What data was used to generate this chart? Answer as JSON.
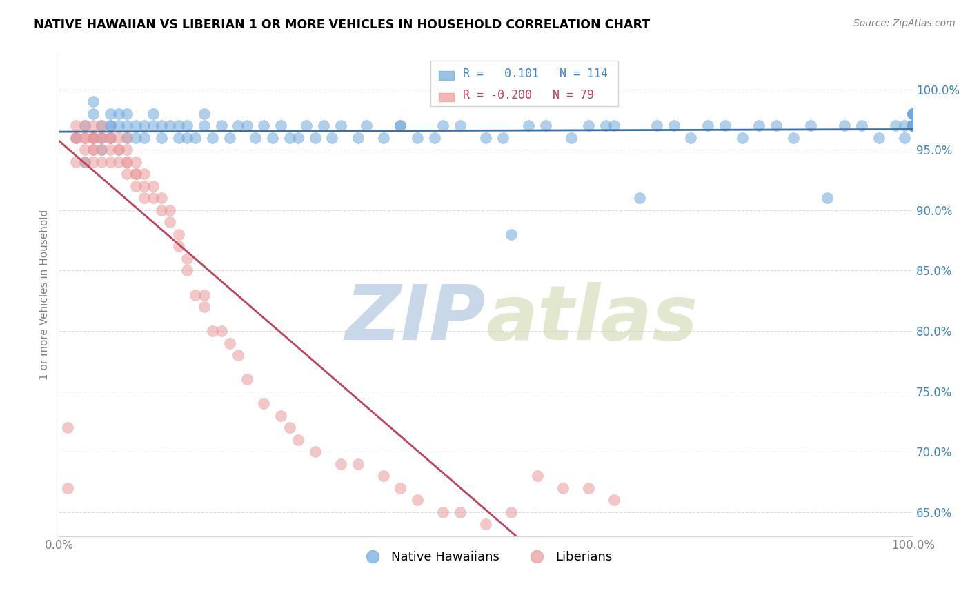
{
  "title": "NATIVE HAWAIIAN VS LIBERIAN 1 OR MORE VEHICLES IN HOUSEHOLD CORRELATION CHART",
  "source": "Source: ZipAtlas.com",
  "ylabel": "1 or more Vehicles in Household",
  "xmin": 0.0,
  "xmax": 1.0,
  "ymin": 0.63,
  "ymax": 1.03,
  "yticks": [
    0.65,
    0.7,
    0.75,
    0.8,
    0.85,
    0.9,
    0.95,
    1.0
  ],
  "ytick_labels": [
    "65.0%",
    "70.0%",
    "75.0%",
    "80.0%",
    "85.0%",
    "90.0%",
    "95.0%",
    "100.0%"
  ],
  "xticks": [
    0.0,
    0.1,
    0.2,
    0.3,
    0.4,
    0.5,
    0.6,
    0.7,
    0.8,
    0.9,
    1.0
  ],
  "xtick_labels": [
    "0.0%",
    "",
    "",
    "",
    "",
    "",
    "",
    "",
    "",
    "",
    "100.0%"
  ],
  "blue_color": "#6fa8dc",
  "pink_color": "#ea9999",
  "blue_line_color": "#3d6fa3",
  "pink_line_color": "#c0415a",
  "blue_R": 0.101,
  "blue_N": 114,
  "pink_R": -0.2,
  "pink_N": 79,
  "watermark_zip": "ZIP",
  "watermark_atlas": "atlas",
  "watermark_color": "#c8d8e8",
  "legend_blue": "Native Hawaiians",
  "legend_pink": "Liberians",
  "label_color_blue": "#3d85c8",
  "label_color_pink": "#c0415a",
  "blue_scatter_x": [
    0.02,
    0.03,
    0.03,
    0.04,
    0.04,
    0.04,
    0.05,
    0.05,
    0.05,
    0.06,
    0.06,
    0.06,
    0.06,
    0.07,
    0.07,
    0.08,
    0.08,
    0.08,
    0.09,
    0.09,
    0.1,
    0.1,
    0.11,
    0.11,
    0.12,
    0.12,
    0.13,
    0.14,
    0.14,
    0.15,
    0.15,
    0.16,
    0.17,
    0.17,
    0.18,
    0.19,
    0.2,
    0.21,
    0.22,
    0.23,
    0.24,
    0.25,
    0.26,
    0.27,
    0.28,
    0.29,
    0.3,
    0.31,
    0.32,
    0.33,
    0.35,
    0.36,
    0.38,
    0.4,
    0.4,
    0.42,
    0.44,
    0.45,
    0.47,
    0.5,
    0.52,
    0.53,
    0.55,
    0.57,
    0.6,
    0.62,
    0.64,
    0.65,
    0.68,
    0.7,
    0.72,
    0.74,
    0.76,
    0.78,
    0.8,
    0.82,
    0.84,
    0.86,
    0.88,
    0.9,
    0.92,
    0.94,
    0.96,
    0.98,
    0.99,
    0.99,
    1.0,
    1.0,
    1.0,
    1.0,
    1.0,
    1.0,
    1.0,
    1.0,
    1.0,
    1.0,
    1.0,
    1.0,
    1.0,
    1.0,
    1.0,
    1.0,
    1.0,
    1.0,
    1.0,
    1.0,
    1.0,
    1.0,
    1.0,
    1.0,
    1.0,
    1.0,
    1.0,
    1.0
  ],
  "blue_scatter_y": [
    0.96,
    0.97,
    0.94,
    0.99,
    0.96,
    0.98,
    0.97,
    0.95,
    0.96,
    0.97,
    0.98,
    0.97,
    0.96,
    0.98,
    0.97,
    0.96,
    0.98,
    0.97,
    0.97,
    0.96,
    0.97,
    0.96,
    0.98,
    0.97,
    0.96,
    0.97,
    0.97,
    0.96,
    0.97,
    0.97,
    0.96,
    0.96,
    0.97,
    0.98,
    0.96,
    0.97,
    0.96,
    0.97,
    0.97,
    0.96,
    0.97,
    0.96,
    0.97,
    0.96,
    0.96,
    0.97,
    0.96,
    0.97,
    0.96,
    0.97,
    0.96,
    0.97,
    0.96,
    0.97,
    0.97,
    0.96,
    0.96,
    0.97,
    0.97,
    0.96,
    0.96,
    0.88,
    0.97,
    0.97,
    0.96,
    0.97,
    0.97,
    0.97,
    0.91,
    0.97,
    0.97,
    0.96,
    0.97,
    0.97,
    0.96,
    0.97,
    0.97,
    0.96,
    0.97,
    0.91,
    0.97,
    0.97,
    0.96,
    0.97,
    0.97,
    0.96,
    0.98,
    0.98,
    0.98,
    0.97,
    0.98,
    0.97,
    0.97,
    0.97,
    0.97,
    0.98,
    0.97,
    0.97,
    0.97,
    0.97,
    0.97,
    0.97,
    0.97,
    0.97,
    0.97,
    0.97,
    0.97,
    0.97,
    0.97,
    0.97,
    0.97,
    0.97,
    0.97,
    0.97
  ],
  "pink_scatter_x": [
    0.01,
    0.01,
    0.02,
    0.02,
    0.02,
    0.02,
    0.03,
    0.03,
    0.03,
    0.03,
    0.03,
    0.04,
    0.04,
    0.04,
    0.04,
    0.04,
    0.04,
    0.04,
    0.05,
    0.05,
    0.05,
    0.05,
    0.05,
    0.06,
    0.06,
    0.06,
    0.06,
    0.07,
    0.07,
    0.07,
    0.07,
    0.08,
    0.08,
    0.08,
    0.08,
    0.08,
    0.09,
    0.09,
    0.09,
    0.09,
    0.1,
    0.1,
    0.1,
    0.11,
    0.11,
    0.12,
    0.12,
    0.13,
    0.13,
    0.14,
    0.14,
    0.15,
    0.15,
    0.16,
    0.17,
    0.17,
    0.18,
    0.19,
    0.2,
    0.21,
    0.22,
    0.24,
    0.26,
    0.27,
    0.28,
    0.3,
    0.33,
    0.35,
    0.38,
    0.4,
    0.42,
    0.45,
    0.47,
    0.5,
    0.53,
    0.56,
    0.59,
    0.62,
    0.65
  ],
  "pink_scatter_y": [
    0.67,
    0.72,
    0.96,
    0.94,
    0.97,
    0.96,
    0.96,
    0.94,
    0.97,
    0.96,
    0.95,
    0.96,
    0.95,
    0.96,
    0.97,
    0.94,
    0.95,
    0.96,
    0.96,
    0.95,
    0.96,
    0.94,
    0.97,
    0.96,
    0.95,
    0.94,
    0.96,
    0.95,
    0.94,
    0.96,
    0.95,
    0.94,
    0.95,
    0.96,
    0.94,
    0.93,
    0.93,
    0.94,
    0.93,
    0.92,
    0.92,
    0.91,
    0.93,
    0.91,
    0.92,
    0.9,
    0.91,
    0.89,
    0.9,
    0.88,
    0.87,
    0.85,
    0.86,
    0.83,
    0.83,
    0.82,
    0.8,
    0.8,
    0.79,
    0.78,
    0.76,
    0.74,
    0.73,
    0.72,
    0.71,
    0.7,
    0.69,
    0.69,
    0.68,
    0.67,
    0.66,
    0.65,
    0.65,
    0.64,
    0.65,
    0.68,
    0.67,
    0.67,
    0.66
  ]
}
